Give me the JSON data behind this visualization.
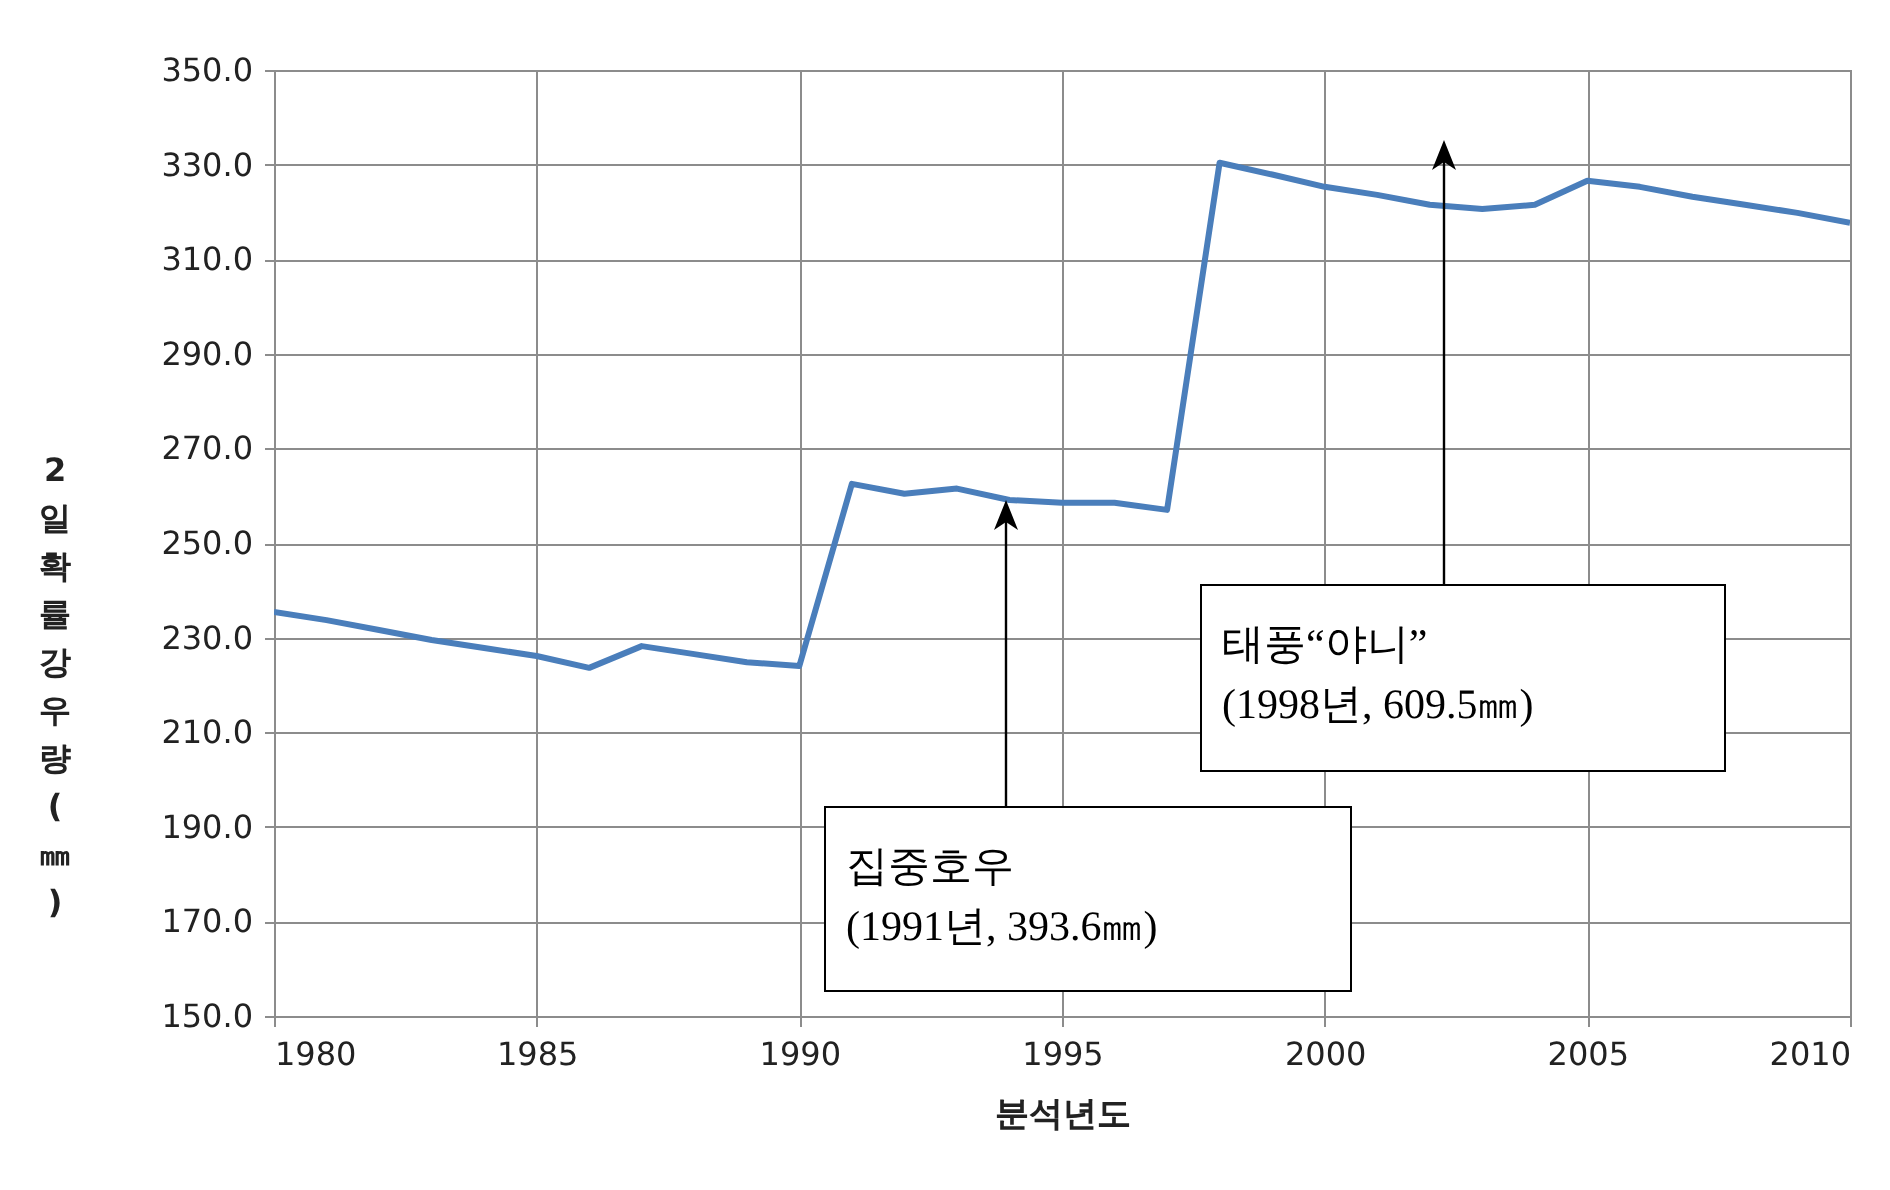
{
  "chart_data": {
    "type": "line",
    "xlabel": "분석년도",
    "ylabel": "2 일 확률강우량(㎜)",
    "x": [
      1980,
      1981,
      1982,
      1983,
      1984,
      1985,
      1986,
      1987,
      1988,
      1989,
      1990,
      1991,
      1992,
      1993,
      1994,
      1995,
      1996,
      1997,
      1998,
      1999,
      2000,
      2001,
      2002,
      2003,
      2004,
      2005,
      2006,
      2007,
      2008,
      2009,
      2010
    ],
    "series": [
      {
        "color": "#4a7ebb",
        "values": [
          235.4,
          233.7,
          231.6,
          229.5,
          227.8,
          226.1,
          223.6,
          228.2,
          226.5,
          224.8,
          224.0,
          262.5,
          260.4,
          261.5,
          259.1,
          258.5,
          258.5,
          257.0,
          330.4,
          327.9,
          325.3,
          323.6,
          321.5,
          320.6,
          321.5,
          326.6,
          325.3,
          323.2,
          321.5,
          319.8,
          317.7
        ]
      }
    ],
    "xlim": [
      1980,
      2010
    ],
    "xticks": [
      1980,
      1985,
      1990,
      1995,
      2000,
      2005,
      2010
    ],
    "ylim": [
      150,
      350
    ],
    "yticks": [
      {
        "value": 150,
        "label": "150.0"
      },
      {
        "value": 170,
        "label": "170.0"
      },
      {
        "value": 190,
        "label": "190.0"
      },
      {
        "value": 210,
        "label": "210.0"
      },
      {
        "value": 230,
        "label": "230.0"
      },
      {
        "value": 250,
        "label": "250.0"
      },
      {
        "value": 270,
        "label": "270.0"
      },
      {
        "value": 290,
        "label": "290.0"
      },
      {
        "value": 310,
        "label": "310.0"
      },
      {
        "value": 330,
        "label": "330.0"
      },
      {
        "value": 350,
        "label": "350.0"
      }
    ],
    "grid": true,
    "marker": "none",
    "line_style": "solid",
    "annotations": [
      "집중호우\n(1991년, 393.6㎜)",
      "태풍“야니”\n(1998년, 609.5㎜)"
    ]
  }
}
